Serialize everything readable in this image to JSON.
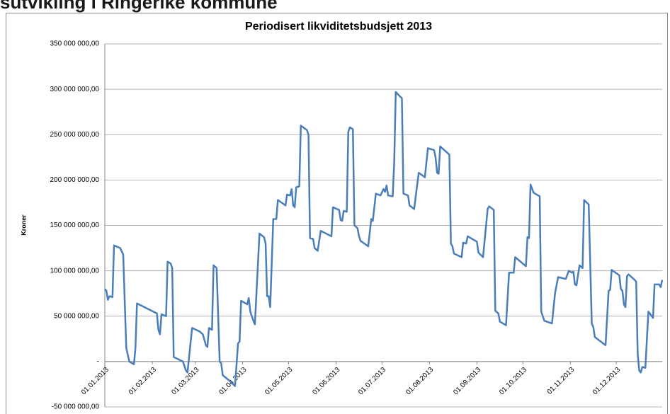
{
  "header": {
    "title": "sutvikling i Ringerike kommune"
  },
  "chart_data": {
    "type": "line",
    "title": "Periodisert likviditetsbudsjett 2013",
    "y_label": "Kroner",
    "color": "#4a7ebb",
    "grid": true,
    "x": [
      "01.01.2013",
      "02.01.2013",
      "03.01.2013",
      "04.01.2013",
      "06.01.2013",
      "07.01.2013",
      "11.01.2013",
      "13.01.2013",
      "15.01.2013",
      "17.01.2013",
      "20.01.2013",
      "21.01.2013",
      "22.01.2013",
      "04.02.2013",
      "05.02.2013",
      "06.02.2013",
      "07.02.2013",
      "10.02.2013",
      "11.02.2013",
      "13.02.2013",
      "14.02.2013",
      "15.02.2013",
      "21.02.2013",
      "23.02.2013",
      "24.02.2013",
      "27.02.2013",
      "04.03.2013",
      "06.03.2013",
      "08.03.2013",
      "09.03.2013",
      "10.03.2013",
      "12.03.2013",
      "13.03.2013",
      "15.03.2013",
      "17.03.2013",
      "18.03.2013",
      "19.03.2013",
      "24.03.2013",
      "27.03.2013",
      "29.03.2013",
      "30.03.2013",
      "31.03.2013",
      "04.04.2013",
      "05.04.2013",
      "06.04.2013",
      "08.04.2013",
      "09.04.2013",
      "12.04.2013",
      "15.04.2013",
      "16.04.2013",
      "17.04.2013",
      "18.04.2013",
      "19.04.2013",
      "21.04.2013",
      "23.04.2013",
      "24.04.2013",
      "29.04.2013",
      "30.04.2013",
      "02.05.2013",
      "03.05.2013",
      "04.05.2013",
      "05.05.2013",
      "06.05.2013",
      "08.05.2013",
      "09.05.2013",
      "13.05.2013",
      "14.05.2013",
      "15.05.2013",
      "17.05.2013",
      "18.05.2013",
      "20.05.2013",
      "22.05.2013",
      "29.05.2013",
      "30.05.2013",
      "03.06.2013",
      "04.06.2013",
      "05.06.2013",
      "06.06.2013",
      "08.06.2013",
      "09.06.2013",
      "10.06.2013",
      "12.06.2013",
      "13.06.2013",
      "15.06.2013",
      "16.06.2013",
      "17.06.2013",
      "22.06.2013",
      "24.06.2013",
      "25.06.2013",
      "27.06.2013",
      "30.06.2013",
      "02.07.2013",
      "03.07.2013",
      "04.07.2013",
      "05.07.2013",
      "08.07.2013",
      "09.07.2013",
      "10.07.2013",
      "14.07.2013",
      "15.07.2013",
      "18.07.2013",
      "19.07.2013",
      "22.07.2013",
      "25.07.2013",
      "29.07.2013",
      "31.07.2013",
      "04.08.2013",
      "05.08.2013",
      "06.08.2013",
      "07.08.2013",
      "08.08.2013",
      "14.08.2013",
      "15.08.2013",
      "16.08.2013",
      "17.08.2013",
      "22.08.2013",
      "23.08.2013",
      "25.08.2013",
      "26.08.2013",
      "01.09.2013",
      "02.09.2013",
      "05.09.2013",
      "08.09.2013",
      "09.09.2013",
      "12.09.2013",
      "13.09.2013",
      "15.09.2013",
      "16.09.2013",
      "20.09.2013",
      "22.09.2013",
      "25.09.2013",
      "26.09.2013",
      "03.10.2013",
      "04.10.2013",
      "05.10.2013",
      "06.10.2013",
      "08.10.2013",
      "12.10.2013",
      "13.10.2013",
      "15.10.2013",
      "20.10.2013",
      "22.10.2013",
      "24.10.2013",
      "29.10.2013",
      "31.10.2013",
      "02.11.2013",
      "03.11.2013",
      "04.11.2013",
      "05.11.2013",
      "07.11.2013",
      "09.11.2013",
      "10.11.2013",
      "13.11.2013",
      "15.11.2013",
      "16.11.2013",
      "17.11.2013",
      "24.11.2013",
      "26.11.2013",
      "27.11.2013",
      "28.11.2013",
      "03.12.2013",
      "04.12.2013",
      "05.12.2013",
      "06.12.2013",
      "07.12.2013",
      "08.12.2013",
      "09.12.2013",
      "13.12.2013",
      "14.12.2013",
      "15.12.2013",
      "16.12.2013",
      "17.12.2013",
      "18.12.2013",
      "20.12.2013",
      "21.12.2013",
      "22.12.2013",
      "25.12.2013",
      "26.12.2013",
      "29.12.2013",
      "30.12.2013",
      "31.12.2013"
    ],
    "values": [
      80000000,
      78000000,
      68000000,
      72000000,
      71000000,
      128000000,
      125000000,
      118000000,
      15000000,
      0,
      -3000000,
      15000000,
      64000000,
      53000000,
      35000000,
      30000000,
      52000000,
      50000000,
      110000000,
      108000000,
      103000000,
      5000000,
      0,
      -10000000,
      -12000000,
      37000000,
      33000000,
      30000000,
      18000000,
      16000000,
      37000000,
      35000000,
      106000000,
      103000000,
      0,
      -2000000,
      -15000000,
      -22000000,
      -27000000,
      20000000,
      22000000,
      67000000,
      63000000,
      70000000,
      55000000,
      45000000,
      41000000,
      141000000,
      137000000,
      130000000,
      72000000,
      72000000,
      60000000,
      157000000,
      157000000,
      178000000,
      172000000,
      184000000,
      183000000,
      190000000,
      172000000,
      170000000,
      192000000,
      193000000,
      260000000,
      255000000,
      250000000,
      136000000,
      135000000,
      125000000,
      122000000,
      144000000,
      138000000,
      170000000,
      167000000,
      156000000,
      155000000,
      166000000,
      165000000,
      253000000,
      258000000,
      256000000,
      150000000,
      147000000,
      138000000,
      133000000,
      127000000,
      157000000,
      155000000,
      185000000,
      183000000,
      190000000,
      187000000,
      194000000,
      183000000,
      182000000,
      220000000,
      297000000,
      290000000,
      185000000,
      183000000,
      172000000,
      168000000,
      208000000,
      203000000,
      235000000,
      233000000,
      225000000,
      208000000,
      207000000,
      237000000,
      228000000,
      130000000,
      127000000,
      119000000,
      115000000,
      131000000,
      130000000,
      138000000,
      132000000,
      120000000,
      115000000,
      168000000,
      171000000,
      167000000,
      56000000,
      53000000,
      44000000,
      40000000,
      98000000,
      98000000,
      115000000,
      105000000,
      137000000,
      136000000,
      195000000,
      186000000,
      182000000,
      55000000,
      45000000,
      42000000,
      75000000,
      93000000,
      91000000,
      100000000,
      98000000,
      99000000,
      85000000,
      84000000,
      106000000,
      103000000,
      178000000,
      173000000,
      42000000,
      38000000,
      27000000,
      18000000,
      78000000,
      79000000,
      101000000,
      95000000,
      80000000,
      78000000,
      63000000,
      60000000,
      94000000,
      96000000,
      90000000,
      88000000,
      8000000,
      -10000000,
      -12000000,
      -6000000,
      -7000000,
      25000000,
      55000000,
      48000000,
      85000000,
      85000000,
      82000000,
      90000000
    ],
    "xlim": [
      "01.01.2013",
      "31.12.2013"
    ],
    "xticks": [
      "01.01.2013",
      "01.02.2013",
      "01.03.2013",
      "01.04.2013",
      "01.05.2013",
      "01.06.2013",
      "01.07.2013",
      "01.08.2013",
      "01.09.2013",
      "01.10.2013",
      "01.11.2013",
      "01.12.2013"
    ],
    "ylim": [
      -50000000,
      350000000
    ],
    "yticks": [
      {
        "value": -50000000,
        "label": "-50 000 000,00"
      },
      {
        "value": 0,
        "label": "-"
      },
      {
        "value": 50000000,
        "label": "50 000 000,00"
      },
      {
        "value": 100000000,
        "label": "100 000 000,00"
      },
      {
        "value": 150000000,
        "label": "150 000 000,00"
      },
      {
        "value": 200000000,
        "label": "200 000 000,00"
      },
      {
        "value": 250000000,
        "label": "250 000 000,00"
      },
      {
        "value": 300000000,
        "label": "300 000 000,00"
      },
      {
        "value": 350000000,
        "label": "350 000 000,00"
      }
    ]
  }
}
